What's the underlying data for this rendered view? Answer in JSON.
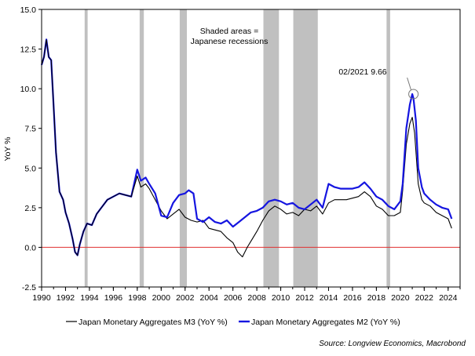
{
  "chart_data": {
    "type": "line",
    "title": "",
    "xlabel": "",
    "ylabel": "YoY %",
    "xlim": [
      1990,
      2025
    ],
    "ylim": [
      -2.5,
      15.0
    ],
    "grid": false,
    "legend_position": "bottom",
    "x_ticks": [
      "1990",
      "1992",
      "1994",
      "1996",
      "1998",
      "2000",
      "2002",
      "2004",
      "2006",
      "2008",
      "2010",
      "2012",
      "2014",
      "2016",
      "2018",
      "2020",
      "2022",
      "2024"
    ],
    "y_ticks": [
      "-2.5",
      "0.0",
      "2.5",
      "5.0",
      "7.5",
      "10.0",
      "12.5",
      "15.0"
    ],
    "recessions": [
      {
        "start": 1993.6,
        "end": 1993.85
      },
      {
        "start": 1998.2,
        "end": 1998.55
      },
      {
        "start": 2001.55,
        "end": 2002.15
      },
      {
        "start": 2008.55,
        "end": 2009.85
      },
      {
        "start": 2011.05,
        "end": 2013.1
      },
      {
        "start": 2018.85,
        "end": 2019.15
      }
    ],
    "reference_line": {
      "y": 0,
      "color": "#e03030"
    },
    "annotations": {
      "shade_note_line1": "Shaded areas =",
      "shade_note_line2": "Japanese recessions",
      "peak_label": "02/2021 9.66",
      "peak_x": 2021.1,
      "peak_y": 9.66
    },
    "series": [
      {
        "name": "Japan Monetary Aggregates M3 (YoY %)",
        "color": "#000000",
        "x": [
          1990.0,
          1990.2,
          1990.4,
          1990.6,
          1990.8,
          1991.0,
          1991.2,
          1991.5,
          1991.8,
          1992.0,
          1992.3,
          1992.6,
          1992.8,
          1993.0,
          1993.2,
          1993.5,
          1993.8,
          1994.2,
          1994.6,
          1995.0,
          1995.5,
          1996.0,
          1996.5,
          1997.0,
          1997.5,
          1998.0,
          1998.3,
          1998.7,
          1999.0,
          1999.5,
          2000.0,
          2000.5,
          2001.0,
          2001.5,
          2002.0,
          2002.5,
          2003.0,
          2003.5,
          2004.0,
          2004.5,
          2005.0,
          2005.5,
          2006.0,
          2006.4,
          2006.8,
          2007.2,
          2007.6,
          2008.0,
          2008.5,
          2009.0,
          2009.5,
          2010.0,
          2010.5,
          2011.0,
          2011.5,
          2012.0,
          2012.5,
          2013.0,
          2013.5,
          2014.0,
          2014.5,
          2015.0,
          2015.5,
          2016.0,
          2016.5,
          2017.0,
          2017.5,
          2018.0,
          2018.5,
          2019.0,
          2019.5,
          2020.0,
          2020.2,
          2020.5,
          2020.8,
          2021.0,
          2021.2,
          2021.5,
          2021.8,
          2022.0,
          2022.5,
          2023.0,
          2023.5,
          2024.0,
          2024.3
        ],
        "y": [
          11.5,
          12.0,
          13.1,
          12.0,
          11.8,
          9.0,
          6.0,
          3.5,
          3.0,
          2.2,
          1.5,
          0.5,
          -0.3,
          -0.5,
          0.2,
          1.0,
          1.5,
          1.4,
          2.1,
          2.5,
          3.0,
          3.2,
          3.4,
          3.3,
          3.2,
          4.5,
          3.8,
          4.0,
          3.7,
          3.0,
          2.3,
          1.8,
          2.1,
          2.4,
          1.9,
          1.7,
          1.6,
          1.7,
          1.2,
          1.1,
          1.0,
          0.6,
          0.3,
          -0.3,
          -0.6,
          0.0,
          0.5,
          1.0,
          1.7,
          2.3,
          2.6,
          2.4,
          2.1,
          2.2,
          2.0,
          2.4,
          2.3,
          2.6,
          2.1,
          2.8,
          3.0,
          3.0,
          3.0,
          3.1,
          3.2,
          3.5,
          3.2,
          2.6,
          2.4,
          2.0,
          2.0,
          2.2,
          3.6,
          6.5,
          7.8,
          8.2,
          7.2,
          4.0,
          3.0,
          2.8,
          2.6,
          2.2,
          2.0,
          1.8,
          1.2
        ]
      },
      {
        "name": "Japan Monetary Aggregates M2 (YoY %)",
        "color": "#1515e0",
        "x": [
          1990.0,
          1990.2,
          1990.4,
          1990.6,
          1990.8,
          1991.0,
          1991.2,
          1991.5,
          1991.8,
          1992.0,
          1992.3,
          1992.6,
          1992.8,
          1993.0,
          1993.2,
          1993.5,
          1993.8,
          1994.2,
          1994.6,
          1995.0,
          1995.5,
          1996.0,
          1996.5,
          1997.0,
          1997.5,
          1998.0,
          1998.3,
          1998.7,
          1999.0,
          1999.5,
          2000.0,
          2000.5,
          2001.0,
          2001.5,
          2002.0,
          2002.3,
          2002.7,
          2003.0,
          2003.5,
          2004.0,
          2004.5,
          2005.0,
          2005.5,
          2006.0,
          2006.5,
          2007.0,
          2007.5,
          2008.0,
          2008.5,
          2009.0,
          2009.5,
          2010.0,
          2010.5,
          2011.0,
          2011.5,
          2012.0,
          2012.5,
          2013.0,
          2013.5,
          2014.0,
          2014.5,
          2015.0,
          2015.5,
          2016.0,
          2016.5,
          2017.0,
          2017.5,
          2018.0,
          2018.5,
          2019.0,
          2019.5,
          2020.0,
          2020.2,
          2020.5,
          2020.8,
          2021.0,
          2021.1,
          2021.3,
          2021.5,
          2021.8,
          2022.0,
          2022.5,
          2023.0,
          2023.5,
          2024.0,
          2024.3
        ],
        "y": [
          11.5,
          12.0,
          13.1,
          12.0,
          11.8,
          9.0,
          6.0,
          3.5,
          3.0,
          2.2,
          1.5,
          0.5,
          -0.3,
          -0.5,
          0.2,
          1.0,
          1.5,
          1.4,
          2.1,
          2.5,
          3.0,
          3.2,
          3.4,
          3.3,
          3.2,
          4.9,
          4.2,
          4.4,
          4.0,
          3.4,
          2.0,
          1.9,
          2.8,
          3.3,
          3.4,
          3.6,
          3.4,
          1.8,
          1.6,
          1.9,
          1.6,
          1.5,
          1.7,
          1.3,
          1.6,
          1.9,
          2.2,
          2.3,
          2.5,
          2.9,
          3.0,
          2.9,
          2.7,
          2.8,
          2.5,
          2.4,
          2.7,
          3.0,
          2.5,
          4.0,
          3.8,
          3.7,
          3.7,
          3.7,
          3.8,
          4.1,
          3.7,
          3.2,
          3.0,
          2.6,
          2.4,
          2.9,
          4.0,
          7.5,
          9.0,
          9.66,
          9.4,
          8.0,
          5.0,
          3.8,
          3.4,
          3.0,
          2.7,
          2.5,
          2.4,
          1.8
        ]
      }
    ]
  },
  "source": "Source: Longview Economics, Macrobond"
}
